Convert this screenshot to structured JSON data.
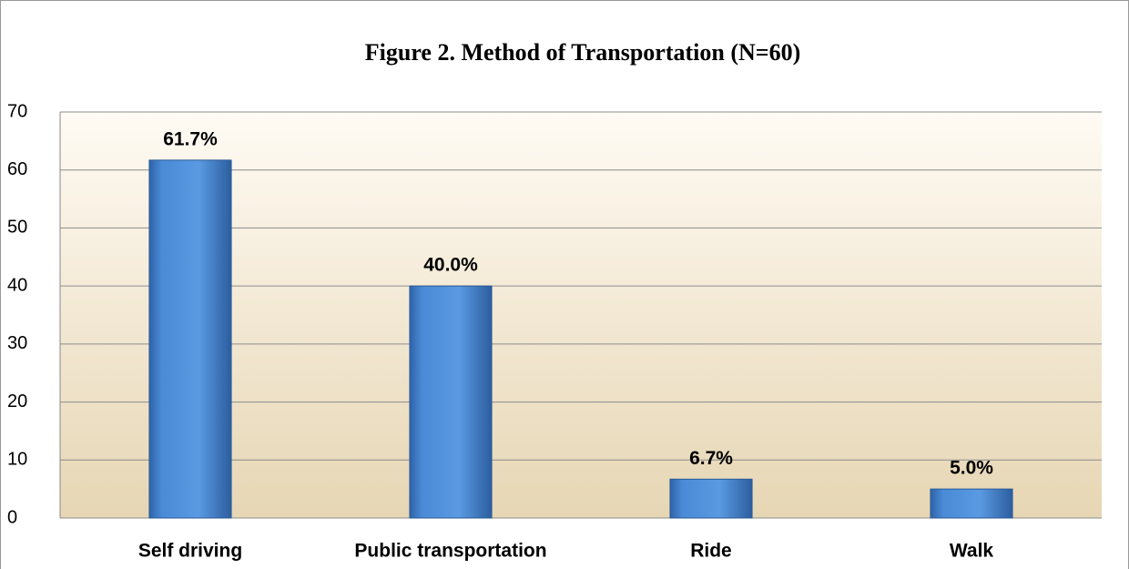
{
  "chart_data": {
    "type": "bar",
    "title": "Figure 2. Method of Transportation (N=60)",
    "categories": [
      "Self driving",
      "Public transportation",
      "Ride",
      "Walk"
    ],
    "values": [
      61.7,
      40.0,
      6.7,
      5.0
    ],
    "value_labels": [
      "61.7%",
      "40.0%",
      "6.7%",
      "5.0%"
    ],
    "color": "#4a8ad6",
    "ylim": [
      0,
      70
    ],
    "yticks": [
      0,
      10,
      20,
      30,
      40,
      50,
      60,
      70
    ],
    "grid": true
  }
}
